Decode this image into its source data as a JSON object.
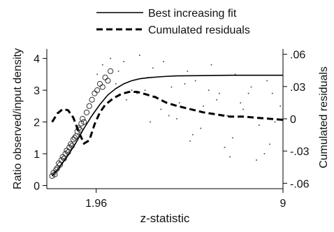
{
  "chart_data": {
    "type": "line",
    "title": "",
    "xlabel": "z-statistic",
    "ylabel": "Ratio observed/input density",
    "y2label": "Cumulated residuals",
    "xlim": [
      0.1,
      9.0
    ],
    "ylim": [
      -0.1,
      4.3
    ],
    "y2lim": [
      -0.065,
      0.065
    ],
    "x_ticks": [
      "1.96",
      "9"
    ],
    "x_tick_values": [
      1.96,
      9
    ],
    "y_ticks": [
      "0",
      "1",
      "2",
      "3",
      "4"
    ],
    "y2_ticks": [
      "-.06",
      "-.03",
      "0",
      ".03",
      ".06"
    ],
    "y2_tick_values": [
      -0.06,
      -0.03,
      0,
      0.03,
      0.06
    ],
    "grid": false,
    "legend_position": "top",
    "legend": [
      {
        "label": "Best increasing fit",
        "style": "solid"
      },
      {
        "label": "Cumulated residuals",
        "style": "dashed"
      }
    ],
    "series": [
      {
        "name": "Best increasing fit",
        "axis": "left",
        "style": "solid",
        "x": [
          0.3,
          0.6,
          0.9,
          1.2,
          1.5,
          1.8,
          2.1,
          2.4,
          2.7,
          3.0,
          3.3,
          3.6,
          4.0,
          4.5,
          5.0,
          6.0,
          7.0,
          8.0,
          9.0
        ],
        "y": [
          0.3,
          0.6,
          0.95,
          1.35,
          1.8,
          2.2,
          2.55,
          2.85,
          3.05,
          3.2,
          3.3,
          3.36,
          3.4,
          3.43,
          3.45,
          3.46,
          3.47,
          3.47,
          3.47
        ]
      },
      {
        "name": "Cumulated residuals",
        "axis": "right",
        "style": "dashed",
        "x": [
          0.3,
          0.5,
          0.7,
          0.9,
          1.1,
          1.3,
          1.5,
          1.7,
          1.9,
          2.1,
          2.3,
          2.6,
          2.9,
          3.2,
          3.5,
          3.8,
          4.2,
          4.6,
          5.0,
          5.5,
          6.0,
          6.5,
          7.0,
          7.5,
          8.0,
          8.5,
          9.0
        ],
        "y": [
          -0.003,
          0.005,
          0.009,
          0.008,
          0.001,
          -0.012,
          -0.023,
          -0.02,
          -0.005,
          0.006,
          0.013,
          0.019,
          0.023,
          0.025,
          0.025,
          0.023,
          0.02,
          0.015,
          0.012,
          0.009,
          0.006,
          0.004,
          0.002,
          0.002,
          0.001,
          0.0,
          -0.001
        ]
      },
      {
        "name": "",
        "axis": "left",
        "style": "markers-large",
        "x": [
          0.3,
          0.35,
          0.4,
          0.45,
          0.5,
          0.55,
          0.6,
          0.65,
          0.7,
          0.75,
          0.8,
          0.85,
          0.9,
          0.95,
          1.0,
          1.05,
          1.1,
          1.15,
          1.2,
          1.25,
          1.3,
          1.35,
          1.4,
          1.45,
          1.5,
          1.6,
          1.7,
          1.8,
          1.9,
          2.0,
          2.1,
          2.2,
          2.3,
          2.4,
          2.5
        ],
        "y": [
          0.3,
          0.4,
          0.35,
          0.5,
          0.55,
          0.7,
          0.65,
          0.8,
          0.9,
          0.85,
          1.0,
          1.1,
          1.05,
          1.2,
          1.3,
          1.25,
          1.45,
          1.5,
          1.55,
          1.7,
          1.8,
          1.75,
          1.95,
          2.1,
          2.0,
          2.3,
          2.5,
          2.7,
          2.9,
          3.0,
          3.2,
          3.1,
          3.4,
          3.3,
          3.6
        ]
      },
      {
        "name": "",
        "axis": "left",
        "style": "markers-small",
        "x": [
          2.0,
          2.2,
          2.5,
          2.7,
          3.0,
          3.3,
          3.6,
          3.9,
          4.2,
          4.5,
          4.8,
          5.1,
          5.4,
          5.7,
          6.0,
          6.3,
          6.6,
          6.9,
          7.2,
          7.5,
          7.8,
          8.1,
          8.4,
          8.7,
          9.0,
          3.1,
          3.8,
          4.4,
          5.0,
          5.6,
          6.2,
          6.8,
          7.4,
          8.0,
          8.6,
          2.8,
          3.5,
          4.1,
          4.7,
          5.3,
          5.9,
          6.5,
          7.1,
          7.7,
          8.3,
          8.9,
          4.0,
          5.5,
          7.0,
          8.5
        ],
        "y": [
          3.5,
          3.8,
          4.0,
          3.2,
          3.9,
          3.0,
          4.1,
          3.4,
          2.8,
          3.9,
          3.1,
          2.6,
          3.6,
          3.3,
          2.5,
          3.8,
          2.9,
          2.2,
          3.5,
          2.4,
          3.1,
          1.9,
          3.3,
          2.0,
          3.6,
          2.7,
          3.0,
          2.4,
          2.1,
          1.6,
          3.0,
          1.2,
          2.6,
          0.8,
          2.9,
          3.6,
          2.9,
          3.7,
          2.2,
          3.2,
          1.8,
          2.7,
          1.5,
          2.9,
          1.0,
          2.5,
          2.0,
          1.4,
          0.9,
          1.3
        ]
      }
    ]
  }
}
